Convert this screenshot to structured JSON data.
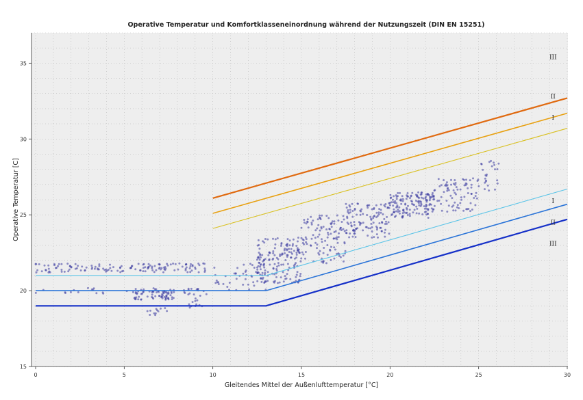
{
  "chart_data": {
    "type": "scatter",
    "title": "Operative Temperatur und Komfortklasseneinordnung während der Nutzungszeit (DIN EN 15251)",
    "xlabel": "Gleitendes Mittel der Außenlufttemperatur [°C]",
    "ylabel": "Operative Temperatur [C]",
    "xlim": [
      0,
      30
    ],
    "ylim": [
      15,
      37
    ],
    "x_ticks": [
      "0",
      "5",
      "10",
      "15",
      "20",
      "25",
      "30"
    ],
    "y_ticks": [
      "15",
      "20",
      "25",
      "30",
      "35"
    ],
    "grid": true,
    "limit_lines": [
      {
        "class": "III",
        "bound": "upper",
        "color": "#e06a10",
        "points": [
          [
            10,
            26.1
          ],
          [
            30,
            32.7
          ]
        ]
      },
      {
        "class": "II",
        "bound": "upper",
        "color": "#e8a010",
        "points": [
          [
            10,
            25.1
          ],
          [
            30,
            31.7
          ]
        ]
      },
      {
        "class": "I",
        "bound": "upper",
        "color": "#d9c020",
        "points": [
          [
            10,
            24.1
          ],
          [
            30,
            30.7
          ]
        ]
      },
      {
        "class": "I",
        "bound": "lower",
        "color": "#5ac4e8",
        "points": [
          [
            0,
            21
          ],
          [
            13,
            21
          ],
          [
            30,
            26.7
          ]
        ]
      },
      {
        "class": "II",
        "bound": "lower",
        "color": "#2a74d8",
        "points": [
          [
            0,
            20
          ],
          [
            13,
            20
          ],
          [
            30,
            25.7
          ]
        ]
      },
      {
        "class": "III",
        "bound": "lower",
        "color": "#1530c8",
        "points": [
          [
            0,
            19
          ],
          [
            13,
            19
          ],
          [
            30,
            24.7
          ]
        ]
      }
    ],
    "band_labels": [
      {
        "text": "III",
        "x": 29.2,
        "y": 35.4
      },
      {
        "text": "II",
        "x": 29.2,
        "y": 32.8
      },
      {
        "text": "I",
        "x": 29.2,
        "y": 31.4
      },
      {
        "text": "I",
        "x": 29.2,
        "y": 25.9
      },
      {
        "text": "II",
        "x": 29.2,
        "y": 24.5
      },
      {
        "text": "III",
        "x": 29.2,
        "y": 23.1
      }
    ],
    "series": [
      {
        "point_color": "#3a3aa0",
        "clusters": [
          {
            "x": [
              0,
              9.6
            ],
            "y": [
              21.2,
              21.8
            ],
            "n": 140
          },
          {
            "x": [
              0,
              9.6
            ],
            "y": [
              19.8,
              20.2
            ],
            "n": 40
          },
          {
            "x": [
              5.5,
              7.8
            ],
            "y": [
              19.4,
              20.0
            ],
            "n": 60
          },
          {
            "x": [
              6.0,
              7.5
            ],
            "y": [
              18.2,
              19.0
            ],
            "n": 12
          },
          {
            "x": [
              8.5,
              9.8
            ],
            "y": [
              18.8,
              20.3
            ],
            "n": 18
          },
          {
            "x": [
              10,
              13
            ],
            "y": [
              20.0,
              21.8
            ],
            "n": 45
          },
          {
            "x": [
              12.5,
              15
            ],
            "y": [
              20.5,
              23.5
            ],
            "n": 170
          },
          {
            "x": [
              15,
              17.5
            ],
            "y": [
              21.8,
              25.0
            ],
            "n": 120
          },
          {
            "x": [
              17.5,
              20
            ],
            "y": [
              23.5,
              25.8
            ],
            "n": 120
          },
          {
            "x": [
              20,
              22.5
            ],
            "y": [
              24.8,
              26.5
            ],
            "n": 150
          },
          {
            "x": [
              22.5,
              25
            ],
            "y": [
              25.2,
              27.5
            ],
            "n": 80
          },
          {
            "x": [
              25,
              26.2
            ],
            "y": [
              26.5,
              28.6
            ],
            "n": 25
          }
        ]
      }
    ]
  }
}
